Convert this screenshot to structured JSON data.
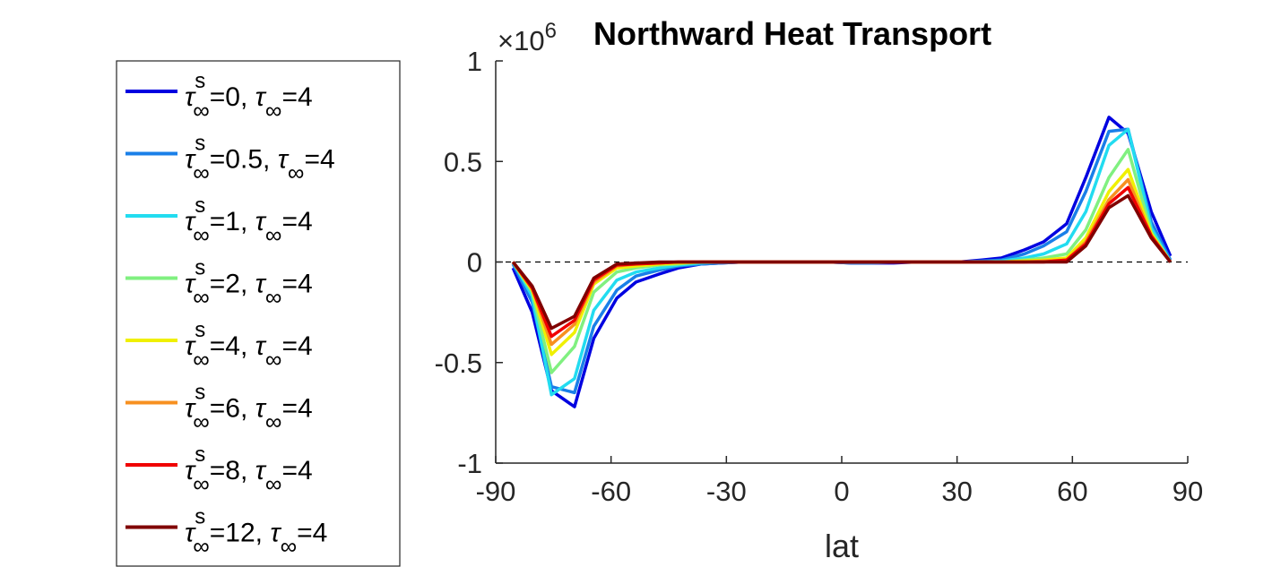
{
  "chart_data": {
    "type": "line",
    "title": "Northward Heat Transport",
    "exponent_label": {
      "base": "×10",
      "power": "6"
    },
    "xlabel": "lat",
    "ylabel": "",
    "xlim": [
      -90,
      90
    ],
    "ylim": [
      -1,
      1
    ],
    "xticks": [
      "-90",
      "-60",
      "-30",
      "0",
      "30",
      "60",
      "90"
    ],
    "yticks": [
      "1",
      "0.5",
      "0",
      "-0.5",
      "-1"
    ],
    "grid": false,
    "zero_line": {
      "y": 0,
      "style": "dashed",
      "color": "#000000"
    },
    "legend": {
      "placement": "outside-left",
      "tau_symbol": "τ",
      "inf_symbol": "∞",
      "sup_s": "s"
    },
    "x": [
      -85.5,
      -80.5,
      -75.5,
      -69.5,
      -64.5,
      -58.5,
      -53.5,
      -47.5,
      -42.5,
      -36.5,
      -31.5,
      -25.5,
      -20.5,
      -14.5,
      -9.5,
      -3.5,
      2.5,
      7.5,
      13.5,
      19.5,
      25.5,
      30.5,
      36.5,
      41.5,
      47.5,
      52.5,
      58.5,
      63.5,
      69.5,
      74.5,
      80.5,
      85.5
    ],
    "series": [
      {
        "name_s": "=0, ",
        "name_t": "=4",
        "color": "#0000e0",
        "values": [
          -0.03,
          -0.25,
          -0.64,
          -0.72,
          -0.38,
          -0.18,
          -0.1,
          -0.06,
          -0.03,
          -0.01,
          -0.005,
          0,
          0,
          0,
          0,
          0,
          -0.005,
          -0.005,
          -0.005,
          0,
          0,
          0,
          0.01,
          0.02,
          0.06,
          0.1,
          0.19,
          0.42,
          0.72,
          0.64,
          0.25,
          0.03
        ]
      },
      {
        "name_s": "=0.5, ",
        "name_t": "=4",
        "color": "#1a7fe8",
        "values": [
          -0.01,
          -0.2,
          -0.62,
          -0.65,
          -0.32,
          -0.14,
          -0.07,
          -0.04,
          -0.02,
          -0.01,
          -0.005,
          0,
          0,
          0,
          0,
          0,
          -0.005,
          -0.005,
          0,
          0,
          0,
          0,
          0.005,
          0.01,
          0.04,
          0.08,
          0.15,
          0.35,
          0.65,
          0.66,
          0.2,
          0.01
        ]
      },
      {
        "name_s": "=1, ",
        "name_t": "=4",
        "color": "#22dcf0",
        "values": [
          0,
          -0.17,
          -0.66,
          -0.58,
          -0.24,
          -0.09,
          -0.05,
          -0.03,
          -0.015,
          -0.005,
          0,
          0,
          0,
          0,
          0,
          0,
          0,
          0,
          0,
          0,
          0,
          0,
          0,
          0.005,
          0.02,
          0.04,
          0.09,
          0.25,
          0.58,
          0.66,
          0.17,
          0
        ]
      },
      {
        "name_s": "=2, ",
        "name_t": "=4",
        "color": "#80f080",
        "values": [
          0,
          -0.15,
          -0.55,
          -0.42,
          -0.15,
          -0.05,
          -0.03,
          -0.015,
          -0.01,
          0,
          0,
          0,
          0,
          0,
          0,
          0,
          0,
          0,
          0,
          0,
          0,
          0,
          0,
          0,
          0.01,
          0.02,
          0.04,
          0.16,
          0.42,
          0.56,
          0.15,
          0
        ]
      },
      {
        "name_s": "=4, ",
        "name_t": "=4",
        "color": "#f0f000",
        "values": [
          0,
          -0.14,
          -0.46,
          -0.35,
          -0.11,
          -0.03,
          -0.02,
          -0.01,
          -0.005,
          0,
          0,
          0,
          0,
          0,
          0,
          0,
          0,
          0,
          0,
          0,
          0,
          0,
          0,
          0,
          0.005,
          0.01,
          0.02,
          0.12,
          0.35,
          0.46,
          0.14,
          0
        ]
      },
      {
        "name_s": "=6, ",
        "name_t": "=4",
        "color": "#f79020",
        "values": [
          0,
          -0.13,
          -0.41,
          -0.31,
          -0.1,
          -0.02,
          -0.01,
          -0.005,
          0,
          0,
          0,
          0,
          0,
          0,
          0,
          0,
          0,
          0,
          0,
          0,
          0,
          0,
          0,
          0,
          0,
          0.005,
          0.01,
          0.1,
          0.31,
          0.41,
          0.13,
          0
        ]
      },
      {
        "name_s": "=8, ",
        "name_t": "=4",
        "color": "#f00000",
        "values": [
          0,
          -0.13,
          -0.37,
          -0.29,
          -0.09,
          -0.015,
          -0.01,
          -0.005,
          0,
          0,
          0,
          0,
          0,
          0,
          0,
          0,
          0,
          0,
          0,
          0,
          0,
          0,
          0,
          0,
          0,
          0,
          0.01,
          0.09,
          0.29,
          0.37,
          0.13,
          0
        ]
      },
      {
        "name_s": "=12, ",
        "name_t": "=4",
        "color": "#800000",
        "values": [
          0,
          -0.12,
          -0.33,
          -0.27,
          -0.08,
          -0.01,
          -0.005,
          0,
          0,
          0,
          0,
          0,
          0,
          0,
          0,
          0,
          0,
          0,
          0,
          0,
          0,
          0,
          0,
          0,
          0,
          0,
          0,
          0.08,
          0.27,
          0.33,
          0.12,
          0
        ]
      }
    ]
  }
}
